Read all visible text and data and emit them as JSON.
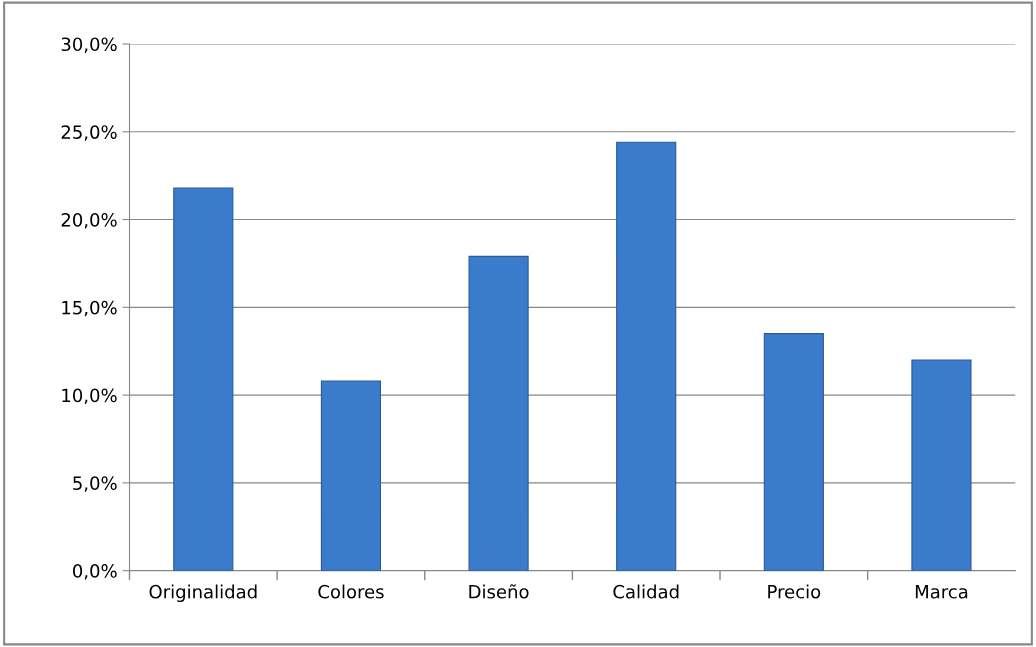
{
  "chart_data": {
    "type": "bar",
    "categories": [
      "Originalidad",
      "Colores",
      "Diseño",
      "Calidad",
      "Precio",
      "Marca"
    ],
    "values": [
      21.8,
      10.8,
      17.9,
      24.4,
      13.5,
      12.0
    ],
    "color": "#3a7bcc",
    "ylim": [
      0,
      30
    ],
    "yticks": [
      {
        "value": 0,
        "label": "0,0%"
      },
      {
        "value": 5,
        "label": "5,0%"
      },
      {
        "value": 10,
        "label": "10,0%"
      },
      {
        "value": 15,
        "label": "15,0%"
      },
      {
        "value": 20,
        "label": "20,0%"
      },
      {
        "value": 25,
        "label": "25,0%"
      },
      {
        "value": 30,
        "label": "30,0%"
      }
    ],
    "grid": "y",
    "legend": false
  }
}
